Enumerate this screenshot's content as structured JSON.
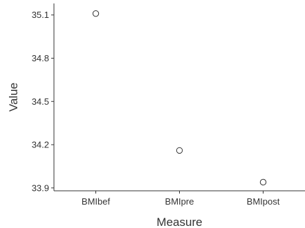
{
  "chart_data": {
    "type": "scatter",
    "categories": [
      "BMIbef",
      "BMIpre",
      "BMIpost"
    ],
    "values": [
      35.11,
      34.16,
      33.94
    ],
    "xlabel": "Measure",
    "ylabel": "Value",
    "y_ticks": [
      "33.9",
      "34.2",
      "34.5",
      "34.8",
      "35.1"
    ],
    "y_tick_values": [
      33.9,
      34.2,
      34.5,
      34.8,
      35.1
    ],
    "ylim": [
      33.88,
      35.18
    ],
    "grid": false,
    "marker": "open-circle",
    "colors": {
      "axis": "#333333",
      "point_stroke": "#333333",
      "point_fill": "#ffffff"
    }
  }
}
